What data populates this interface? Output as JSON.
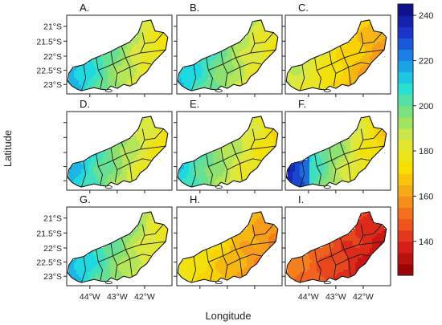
{
  "figure": {
    "xlabel": "Longitude",
    "ylabel": "Latitude",
    "lat_ticks": [
      "21°S",
      "21.5°S",
      "22°S",
      "22.5°S",
      "23°S"
    ],
    "lon_ticks": [
      "44°W",
      "43°W",
      "42°W"
    ]
  },
  "panels": [
    {
      "label": "A.",
      "bias": 10,
      "spread": 38,
      "dark_west": false
    },
    {
      "label": "B.",
      "bias": 10,
      "spread": 34,
      "dark_west": false
    },
    {
      "label": "C.",
      "bias": -10,
      "spread": 26,
      "dark_west": false
    },
    {
      "label": "D.",
      "bias": 10,
      "spread": 36,
      "dark_west": false
    },
    {
      "label": "E.",
      "bias": 6,
      "spread": 34,
      "dark_west": false
    },
    {
      "label": "F.",
      "bias": 8,
      "spread": 44,
      "dark_west": true
    },
    {
      "label": "G.",
      "bias": 12,
      "spread": 34,
      "dark_west": false
    },
    {
      "label": "H.",
      "bias": -16,
      "spread": 22,
      "dark_west": false
    },
    {
      "label": "I.",
      "bias": -38,
      "spread": 20,
      "dark_west": false
    }
  ],
  "colorbar": {
    "min": 125,
    "max": 245,
    "step": 5,
    "ticks": [
      140,
      160,
      180,
      200,
      220,
      240
    ],
    "palette": [
      "#8b0000",
      "#d41a1a",
      "#f25c1f",
      "#f7a21b",
      "#f8e000",
      "#dce840",
      "#7fe07a",
      "#1ee0e0",
      "#1b8ae8",
      "#1a2fc8",
      "#0a0a7a"
    ]
  }
}
